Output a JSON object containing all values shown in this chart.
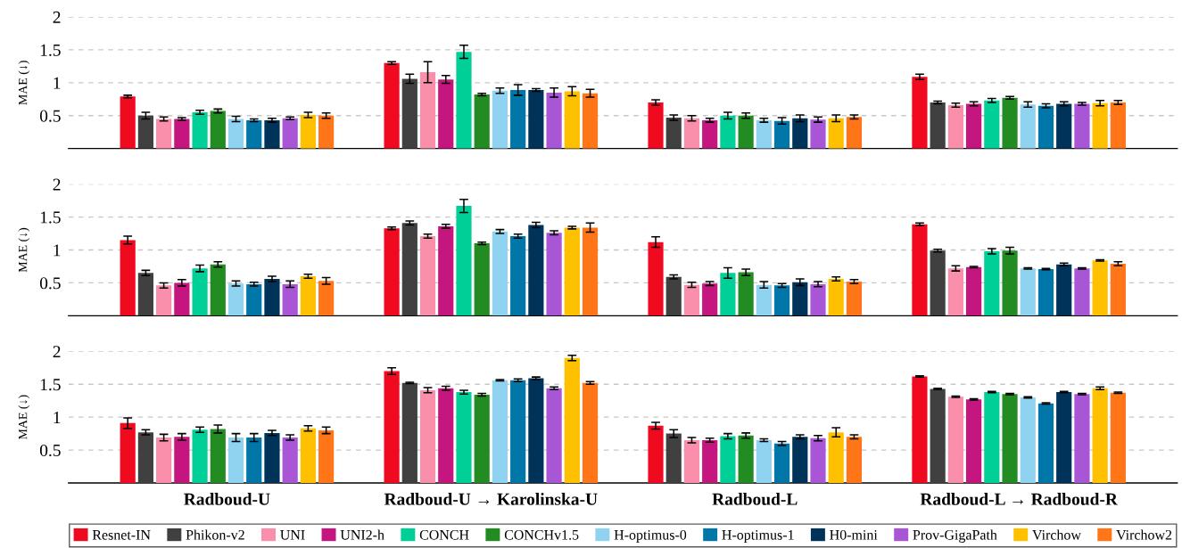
{
  "chart_data": [
    {
      "type": "bar",
      "ylabel": "MAE (↓)",
      "categories": [
        null,
        null,
        null,
        null
      ],
      "ylim": [
        0,
        2
      ],
      "yticks": [
        0.5,
        1,
        1.5,
        2
      ],
      "grid": "y",
      "tick_labels": "y",
      "series": [
        {
          "color": "#ef0a20",
          "values": [
            0.79,
            1.3,
            0.7,
            1.09
          ],
          "errors": [
            0.02,
            0.02,
            0.04,
            0.04
          ]
        },
        {
          "color": "#404040",
          "values": [
            0.5,
            1.06,
            0.47,
            0.7
          ],
          "errors": [
            0.05,
            0.07,
            0.04,
            0.02
          ]
        },
        {
          "color": "#fa8fab",
          "values": [
            0.45,
            1.16,
            0.46,
            0.66
          ],
          "errors": [
            0.03,
            0.16,
            0.04,
            0.03
          ]
        },
        {
          "color": "#c5157e",
          "values": [
            0.45,
            1.05,
            0.43,
            0.68
          ],
          "errors": [
            0.02,
            0.06,
            0.03,
            0.03
          ]
        },
        {
          "color": "#00cf98",
          "values": [
            0.55,
            1.47,
            0.5,
            0.73
          ],
          "errors": [
            0.03,
            0.1,
            0.05,
            0.03
          ]
        },
        {
          "color": "#228b22",
          "values": [
            0.57,
            0.82,
            0.5,
            0.77
          ],
          "errors": [
            0.03,
            0.02,
            0.04,
            0.02
          ]
        },
        {
          "color": "#8fd3f0",
          "values": [
            0.45,
            0.88,
            0.43,
            0.67
          ],
          "errors": [
            0.04,
            0.04,
            0.03,
            0.04
          ]
        },
        {
          "color": "#0077a8",
          "values": [
            0.43,
            0.89,
            0.42,
            0.65
          ],
          "errors": [
            0.02,
            0.08,
            0.05,
            0.03
          ]
        },
        {
          "color": "#00335a",
          "values": [
            0.43,
            0.89,
            0.46,
            0.68
          ],
          "errors": [
            0.03,
            0.02,
            0.05,
            0.03
          ]
        },
        {
          "color": "#a855d6",
          "values": [
            0.46,
            0.85,
            0.44,
            0.68
          ],
          "errors": [
            0.02,
            0.07,
            0.04,
            0.02
          ]
        },
        {
          "color": "#ffc000",
          "values": [
            0.51,
            0.87,
            0.46,
            0.69
          ],
          "errors": [
            0.04,
            0.07,
            0.05,
            0.04
          ]
        },
        {
          "color": "#ff7518",
          "values": [
            0.5,
            0.84,
            0.48,
            0.7
          ],
          "errors": [
            0.04,
            0.06,
            0.03,
            0.03
          ]
        }
      ]
    },
    {
      "type": "bar",
      "ylabel": "MAE (↓)",
      "categories": [
        null,
        null,
        null,
        null
      ],
      "ylim": [
        0,
        2
      ],
      "yticks": [
        0.5,
        1,
        1.5,
        2
      ],
      "grid": "y",
      "tick_labels": "y",
      "series": [
        {
          "color": "#ef0a20",
          "values": [
            1.15,
            1.33,
            1.12,
            1.39
          ],
          "errors": [
            0.06,
            0.02,
            0.08,
            0.02
          ]
        },
        {
          "color": "#404040",
          "values": [
            0.65,
            1.41,
            0.59,
            0.99
          ],
          "errors": [
            0.04,
            0.03,
            0.03,
            0.02
          ]
        },
        {
          "color": "#fa8fab",
          "values": [
            0.46,
            1.21,
            0.47,
            0.72
          ],
          "errors": [
            0.04,
            0.03,
            0.04,
            0.04
          ]
        },
        {
          "color": "#c5157e",
          "values": [
            0.5,
            1.36,
            0.49,
            0.74
          ],
          "errors": [
            0.05,
            0.03,
            0.03,
            0.01
          ]
        },
        {
          "color": "#00cf98",
          "values": [
            0.72,
            1.67,
            0.65,
            0.98
          ],
          "errors": [
            0.05,
            0.1,
            0.08,
            0.04
          ]
        },
        {
          "color": "#228b22",
          "values": [
            0.78,
            1.1,
            0.66,
            0.99
          ],
          "errors": [
            0.04,
            0.02,
            0.05,
            0.05
          ]
        },
        {
          "color": "#8fd3f0",
          "values": [
            0.49,
            1.28,
            0.47,
            0.72
          ],
          "errors": [
            0.04,
            0.03,
            0.05,
            0.01
          ]
        },
        {
          "color": "#0077a8",
          "values": [
            0.48,
            1.21,
            0.46,
            0.71
          ],
          "errors": [
            0.03,
            0.03,
            0.03,
            0.01
          ]
        },
        {
          "color": "#00335a",
          "values": [
            0.56,
            1.38,
            0.51,
            0.78
          ],
          "errors": [
            0.04,
            0.04,
            0.05,
            0.02
          ]
        },
        {
          "color": "#a855d6",
          "values": [
            0.48,
            1.26,
            0.48,
            0.72
          ],
          "errors": [
            0.05,
            0.03,
            0.04,
            0.01
          ]
        },
        {
          "color": "#ffc000",
          "values": [
            0.6,
            1.34,
            0.56,
            0.84
          ],
          "errors": [
            0.03,
            0.02,
            0.03,
            0.01
          ]
        },
        {
          "color": "#ff7518",
          "values": [
            0.53,
            1.34,
            0.52,
            0.79
          ],
          "errors": [
            0.05,
            0.07,
            0.03,
            0.03
          ]
        }
      ]
    },
    {
      "type": "bar",
      "ylabel": "MAE (↓)",
      "categories": [
        "Radboud-U",
        "Radboud-U → Karolinska-U",
        "Radboud-L",
        "Radboud-L → Radboud-R"
      ],
      "ylim": [
        0,
        2
      ],
      "yticks": [
        0.5,
        1,
        1.5,
        2
      ],
      "grid": "y",
      "legend": "bottom",
      "series": [
        {
          "name": "Resnet-IN",
          "color": "#ef0a20",
          "values": [
            0.91,
            1.7,
            0.87,
            1.62
          ],
          "errors": [
            0.08,
            0.05,
            0.05,
            0.01
          ]
        },
        {
          "name": "Phikon-v2",
          "color": "#404040",
          "values": [
            0.77,
            1.52,
            0.75,
            1.43
          ],
          "errors": [
            0.04,
            0.01,
            0.06,
            0.01
          ]
        },
        {
          "name": "UNI",
          "color": "#fa8fab",
          "values": [
            0.69,
            1.41,
            0.65,
            1.31
          ],
          "errors": [
            0.05,
            0.04,
            0.04,
            0.01
          ]
        },
        {
          "name": "UNI2-h",
          "color": "#c5157e",
          "values": [
            0.7,
            1.44,
            0.65,
            1.27
          ],
          "errors": [
            0.05,
            0.03,
            0.03,
            0.01
          ]
        },
        {
          "name": "CONCH",
          "color": "#00cf98",
          "values": [
            0.81,
            1.38,
            0.71,
            1.38
          ],
          "errors": [
            0.04,
            0.03,
            0.04,
            0.01
          ]
        },
        {
          "name": "CONCHv1.5",
          "color": "#228b22",
          "values": [
            0.82,
            1.34,
            0.72,
            1.35
          ],
          "errors": [
            0.06,
            0.02,
            0.04,
            0.01
          ]
        },
        {
          "name": "H-optimus-0",
          "color": "#8fd3f0",
          "values": [
            0.69,
            1.56,
            0.65,
            1.3
          ],
          "errors": [
            0.06,
            0.01,
            0.02,
            0.01
          ]
        },
        {
          "name": "H-optimus-1",
          "color": "#0077a8",
          "values": [
            0.69,
            1.56,
            0.6,
            1.21
          ],
          "errors": [
            0.06,
            0.02,
            0.03,
            0.01
          ]
        },
        {
          "name": "H0-mini",
          "color": "#00335a",
          "values": [
            0.76,
            1.59,
            0.7,
            1.38
          ],
          "errors": [
            0.04,
            0.02,
            0.03,
            0.01
          ]
        },
        {
          "name": "Prov-GigaPath",
          "color": "#a855d6",
          "values": [
            0.69,
            1.44,
            0.68,
            1.35
          ],
          "errors": [
            0.04,
            0.02,
            0.04,
            0.01
          ]
        },
        {
          "name": "Virchow",
          "color": "#ffc000",
          "values": [
            0.83,
            1.9,
            0.77,
            1.44
          ],
          "errors": [
            0.04,
            0.04,
            0.07,
            0.02
          ]
        },
        {
          "name": "Virchow2",
          "color": "#ff7518",
          "values": [
            0.8,
            1.52,
            0.7,
            1.37
          ],
          "errors": [
            0.05,
            0.02,
            0.03,
            0.01
          ]
        }
      ]
    }
  ]
}
